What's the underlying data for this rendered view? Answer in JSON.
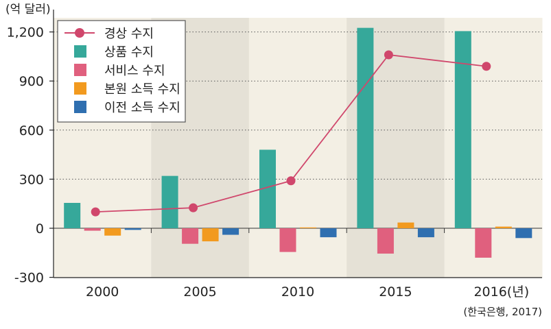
{
  "chart_data": {
    "type": "bar",
    "unit_label": "(억 달러)",
    "categories": [
      "2000",
      "2005",
      "2010",
      "2015",
      "2016(년)"
    ],
    "yticks": [
      "1,200",
      "900",
      "600",
      "300",
      "0",
      "-300"
    ],
    "ytick_values": [
      1200,
      900,
      600,
      300,
      0,
      -300
    ],
    "ylim": [
      -300,
      1200
    ],
    "grid": true,
    "legend_position": "top-left",
    "series": [
      {
        "name": "상품 수지",
        "kind": "bar",
        "color": "#36a89a",
        "values": [
          155,
          320,
          480,
          1225,
          1205
        ]
      },
      {
        "name": "서비스 수지",
        "kind": "bar",
        "color": "#e0607e",
        "values": [
          -15,
          -95,
          -145,
          -155,
          -180
        ]
      },
      {
        "name": "본원 소득 수지",
        "kind": "bar",
        "color": "#f29a1f",
        "values": [
          -45,
          -80,
          5,
          35,
          10
        ]
      },
      {
        "name": "이전 소득 수지",
        "kind": "bar",
        "color": "#2f6fb0",
        "values": [
          -10,
          -40,
          -55,
          -55,
          -60
        ]
      },
      {
        "name": "경상 수지",
        "kind": "line",
        "color": "#d0476c",
        "values": [
          100,
          125,
          290,
          1060,
          990
        ]
      }
    ],
    "source": "(한국은행, 2017)"
  }
}
